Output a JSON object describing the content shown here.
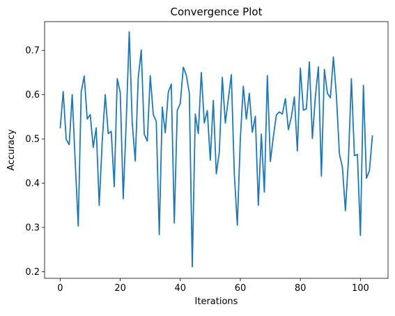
{
  "chart_data": {
    "type": "line",
    "title": "Convergence Plot",
    "xlabel": "Iterations",
    "ylabel": "Accuracy",
    "xlim": [
      -5.2,
      109.2
    ],
    "ylim": [
      0.185,
      0.765
    ],
    "xticks": [
      0,
      20,
      40,
      60,
      80,
      100
    ],
    "xtick_labels": [
      "0",
      "20",
      "40",
      "60",
      "80",
      "100"
    ],
    "yticks": [
      0.2,
      0.3,
      0.4,
      0.5,
      0.6,
      0.7
    ],
    "ytick_labels": [
      "0.2",
      "0.3",
      "0.4",
      "0.5",
      "0.6",
      "0.7"
    ],
    "grid": false,
    "legend": "none",
    "series": [
      {
        "color": "#1f77b4",
        "x": [
          0,
          1,
          2,
          3,
          4,
          5,
          6,
          7,
          8,
          9,
          10,
          11,
          12,
          13,
          14,
          15,
          16,
          17,
          18,
          19,
          20,
          21,
          22,
          23,
          24,
          25,
          26,
          27,
          28,
          29,
          30,
          31,
          32,
          33,
          34,
          35,
          36,
          37,
          38,
          39,
          40,
          41,
          42,
          43,
          44,
          45,
          46,
          47,
          48,
          49,
          50,
          51,
          52,
          53,
          54,
          55,
          56,
          57,
          58,
          59,
          60,
          61,
          62,
          63,
          64,
          65,
          66,
          67,
          68,
          69,
          70,
          71,
          72,
          73,
          74,
          75,
          76,
          77,
          78,
          79,
          80,
          81,
          82,
          83,
          84,
          85,
          86,
          87,
          88,
          89,
          90,
          91,
          92,
          93,
          94,
          95,
          96,
          97,
          98,
          99,
          100,
          101,
          102,
          103,
          104
        ],
        "y": [
          0.524,
          0.607,
          0.499,
          0.487,
          0.6,
          0.448,
          0.303,
          0.606,
          0.642,
          0.545,
          0.555,
          0.481,
          0.525,
          0.35,
          0.495,
          0.6,
          0.512,
          0.517,
          0.392,
          0.636,
          0.605,
          0.365,
          0.54,
          0.742,
          0.535,
          0.45,
          0.638,
          0.701,
          0.511,
          0.495,
          0.643,
          0.555,
          0.54,
          0.284,
          0.572,
          0.514,
          0.605,
          0.624,
          0.31,
          0.565,
          0.58,
          0.662,
          0.644,
          0.604,
          0.211,
          0.556,
          0.512,
          0.65,
          0.536,
          0.564,
          0.452,
          0.587,
          0.421,
          0.47,
          0.639,
          0.536,
          0.59,
          0.645,
          0.42,
          0.305,
          0.5,
          0.619,
          0.545,
          0.603,
          0.515,
          0.551,
          0.35,
          0.511,
          0.38,
          0.643,
          0.449,
          0.505,
          0.554,
          0.561,
          0.556,
          0.591,
          0.521,
          0.55,
          0.595,
          0.473,
          0.66,
          0.565,
          0.568,
          0.674,
          0.501,
          0.596,
          0.663,
          0.416,
          0.657,
          0.603,
          0.593,
          0.685,
          0.598,
          0.466,
          0.436,
          0.338,
          0.452,
          0.636,
          0.462,
          0.465,
          0.282,
          0.621,
          0.411,
          0.428,
          0.508
        ]
      }
    ]
  }
}
